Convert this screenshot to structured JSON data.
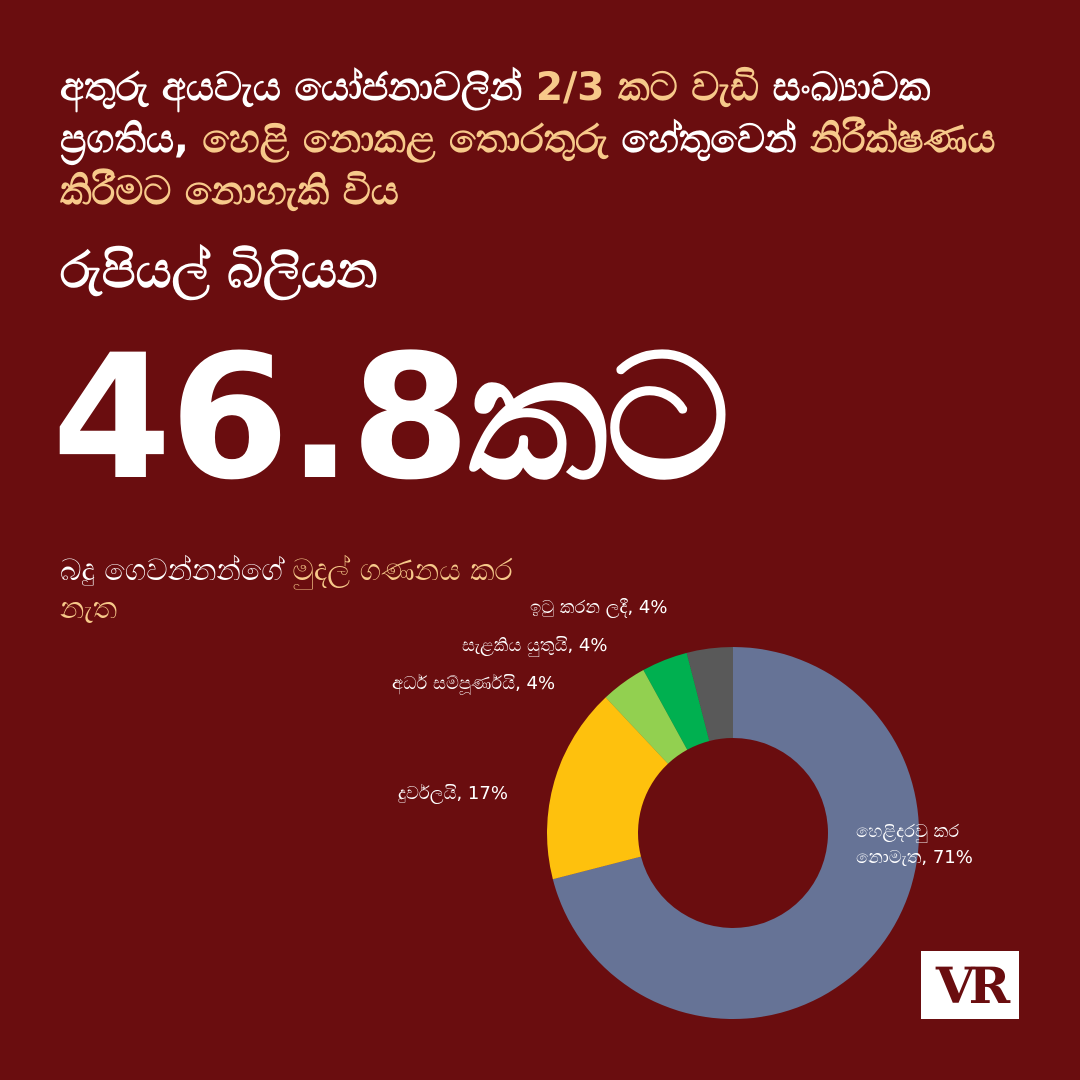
{
  "headline": {
    "part1": "අතුරු අයවැය යෝජනාවලින් ",
    "part2": "2/3 කට වැඩි",
    "part3": " සංඛ්‍යාවක ප්‍රගතිය, ",
    "part4": "හෙළි නොකළ තොරතුරු",
    "part5": " හේතුවෙන් ",
    "part6": "නිරීක්ෂණය කිරීමට නොහැකි විය"
  },
  "subhead": "රුපියල් බිලියන",
  "big_number": "46.8කට",
  "note": {
    "part1": "බදු ගෙවන්නන්ගේ ",
    "part2": "මුදල් ගණනය කර නැත"
  },
  "logo_text": "VR",
  "chart_data": {
    "type": "pie",
    "donut": true,
    "categories": [
      "හෙළිදරවු කර නොමැත",
      "දුර්වලයි",
      "අර්ධ සම්පූර්ණයි",
      "සැළකිය යුතුයි",
      "ඉටු කරන ලදී"
    ],
    "values": [
      71,
      17,
      4,
      4,
      4
    ],
    "labels": [
      "හෙළිදරවු කර",
      "නොමැත, 71%",
      "දුර්වලයි, 17%",
      "අර්ධ සම්පූර්ණයි, 4%",
      "සැළකිය යුතුයි, 4%",
      "ඉටු කරන ලදී, 4%"
    ],
    "colors": [
      "#667396",
      "#fec10d",
      "#92d050",
      "#00b050",
      "#595959"
    ]
  }
}
